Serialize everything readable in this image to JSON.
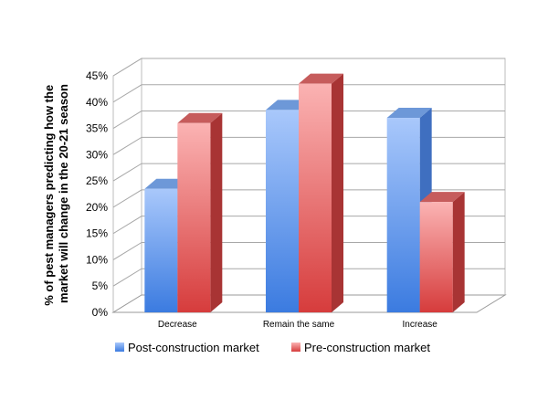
{
  "chart_data": {
    "type": "bar",
    "categories": [
      "Decrease",
      "Remain the same",
      "Increase"
    ],
    "series": [
      {
        "name": "Post-construction market",
        "values": [
          23.5,
          38.5,
          37.0
        ],
        "color": "#4f86e0"
      },
      {
        "name": "Pre-construction market",
        "values": [
          36.0,
          43.5,
          21.0
        ],
        "color": "#e05656"
      }
    ],
    "ylabel_lines": [
      "% of pest managers predicting how the",
      "market will change in the 20-21 season"
    ],
    "ylim": [
      0,
      45
    ],
    "yticks": [
      "0%",
      "5%",
      "10%",
      "15%",
      "20%",
      "25%",
      "30%",
      "35%",
      "40%",
      "45%"
    ],
    "grid": true,
    "style": "3d-clustered-column",
    "legend_position": "bottom"
  }
}
